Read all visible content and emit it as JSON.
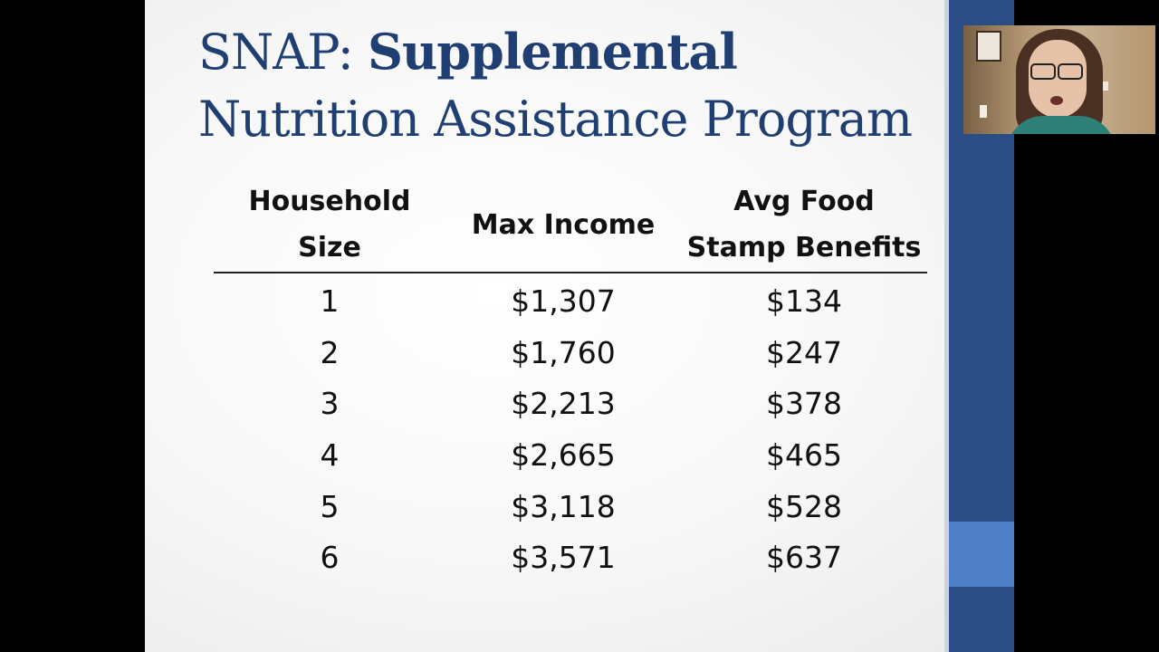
{
  "slide": {
    "title_plain": "SNAP: ",
    "title_bold": "Supplemental",
    "title_line2": "Nutrition Assistance Program"
  },
  "table": {
    "headers": [
      {
        "line1": "Household",
        "line2": "Size"
      },
      {
        "line1": "Max Income",
        "line2": ""
      },
      {
        "line1": "Avg Food",
        "line2": "Stamp Benefits"
      }
    ],
    "rows": [
      [
        "1",
        "$1,307",
        "$134"
      ],
      [
        "2",
        "$1,760",
        "$247"
      ],
      [
        "3",
        "$2,213",
        "$378"
      ],
      [
        "4",
        "$2,665",
        "$465"
      ],
      [
        "5",
        "$3,118",
        "$528"
      ],
      [
        "6",
        "$3,571",
        "$637"
      ]
    ]
  },
  "colors": {
    "title": "#1f3f73",
    "band_dark": "#2a4d86",
    "band_light": "#4f7fc4"
  }
}
